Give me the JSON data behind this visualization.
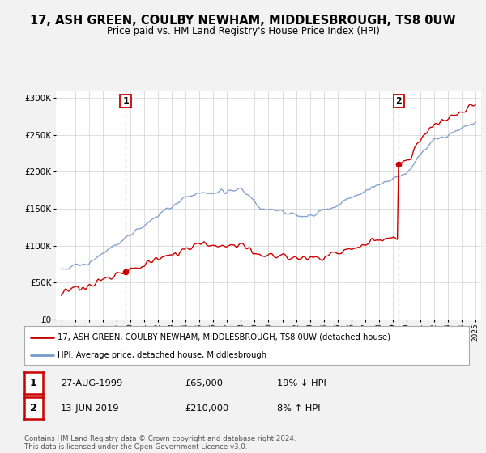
{
  "title": "17, ASH GREEN, COULBY NEWHAM, MIDDLESBROUGH, TS8 0UW",
  "subtitle": "Price paid vs. HM Land Registry's House Price Index (HPI)",
  "bg_color": "#f2f2f2",
  "plot_bg_color": "#ffffff",
  "legend_label1": "17, ASH GREEN, COULBY NEWHAM, MIDDLESBROUGH, TS8 0UW (detached house)",
  "legend_label2": "HPI: Average price, detached house, Middlesbrough",
  "line1_color": "#cc0000",
  "line2_color": "#7799cc",
  "annotation_color": "#cc0000",
  "marker1": {
    "date_year": 1999.65,
    "value": 65000,
    "label": "1"
  },
  "marker2": {
    "date_year": 2019.44,
    "value": 210000,
    "label": "2"
  },
  "table_row1": [
    "1",
    "27-AUG-1999",
    "£65,000",
    "19% ↓ HPI"
  ],
  "table_row2": [
    "2",
    "13-JUN-2019",
    "£210,000",
    "8% ↑ HPI"
  ],
  "footer": "Contains HM Land Registry data © Crown copyright and database right 2024.\nThis data is licensed under the Open Government Licence v3.0.",
  "ylim": [
    0,
    310000
  ],
  "xlim_start": 1994.6,
  "xlim_end": 2025.4
}
